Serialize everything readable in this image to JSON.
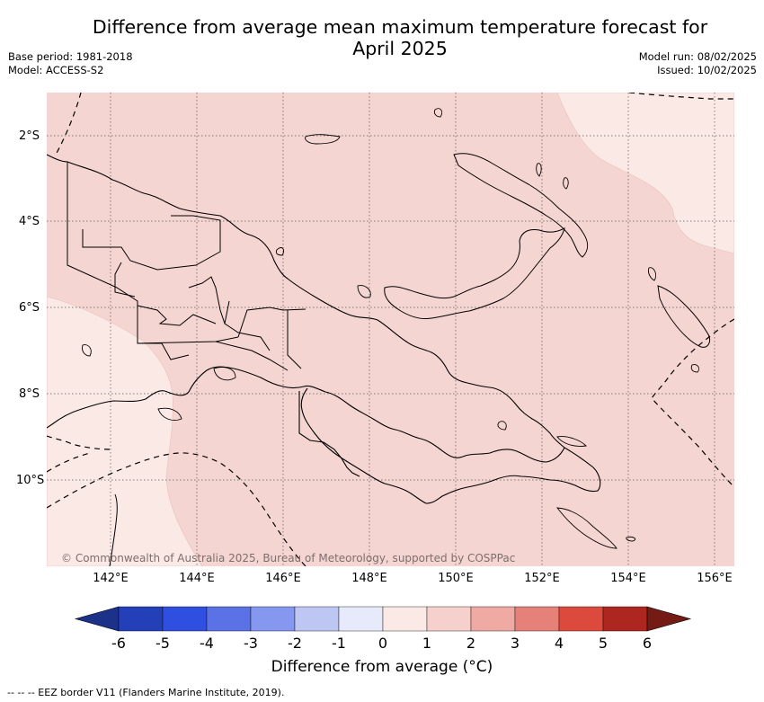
{
  "header": {
    "title_line1": "Difference from average mean maximum temperature forecast for",
    "title_line2": "April 2025",
    "base_period": "Base period: 1981-2018",
    "model": "Model: ACCESS-S2",
    "model_run": "Model run: 08/02/2025",
    "issued": "Issued: 10/02/2025"
  },
  "map": {
    "lat_labels": [
      "2°S",
      "4°S",
      "6°S",
      "8°S",
      "10°S"
    ],
    "lon_labels": [
      "142°E",
      "144°E",
      "146°E",
      "148°E",
      "150°E",
      "152°E",
      "154°E",
      "156°E"
    ],
    "copyright": "© Commonwealth of Australia 2025, Bureau of Meteorology, supported by COSPPac",
    "colors": {
      "anomaly_0_1": "#fbe9e6",
      "anomaly_1_2": "#f5d5d1",
      "coast": "#000000"
    }
  },
  "colorbar": {
    "tick_labels": [
      "-6",
      "-5",
      "-4",
      "-3",
      "-2",
      "-1",
      "0",
      "1",
      "2",
      "3",
      "4",
      "5",
      "6"
    ],
    "colors": [
      "#1c3288",
      "#2340b8",
      "#2f4fe0",
      "#5a72e6",
      "#8597ee",
      "#bec6f4",
      "#e6eafa",
      "#fbe9e6",
      "#f5d0cc",
      "#eeaaa3",
      "#e6817a",
      "#dc4a3e",
      "#ae2620",
      "#741b16"
    ],
    "label": "Difference from average (°C)"
  },
  "legend": {
    "eez": "--  --  -- EEZ border V11 (Flanders Marine Institute, 2019)."
  }
}
